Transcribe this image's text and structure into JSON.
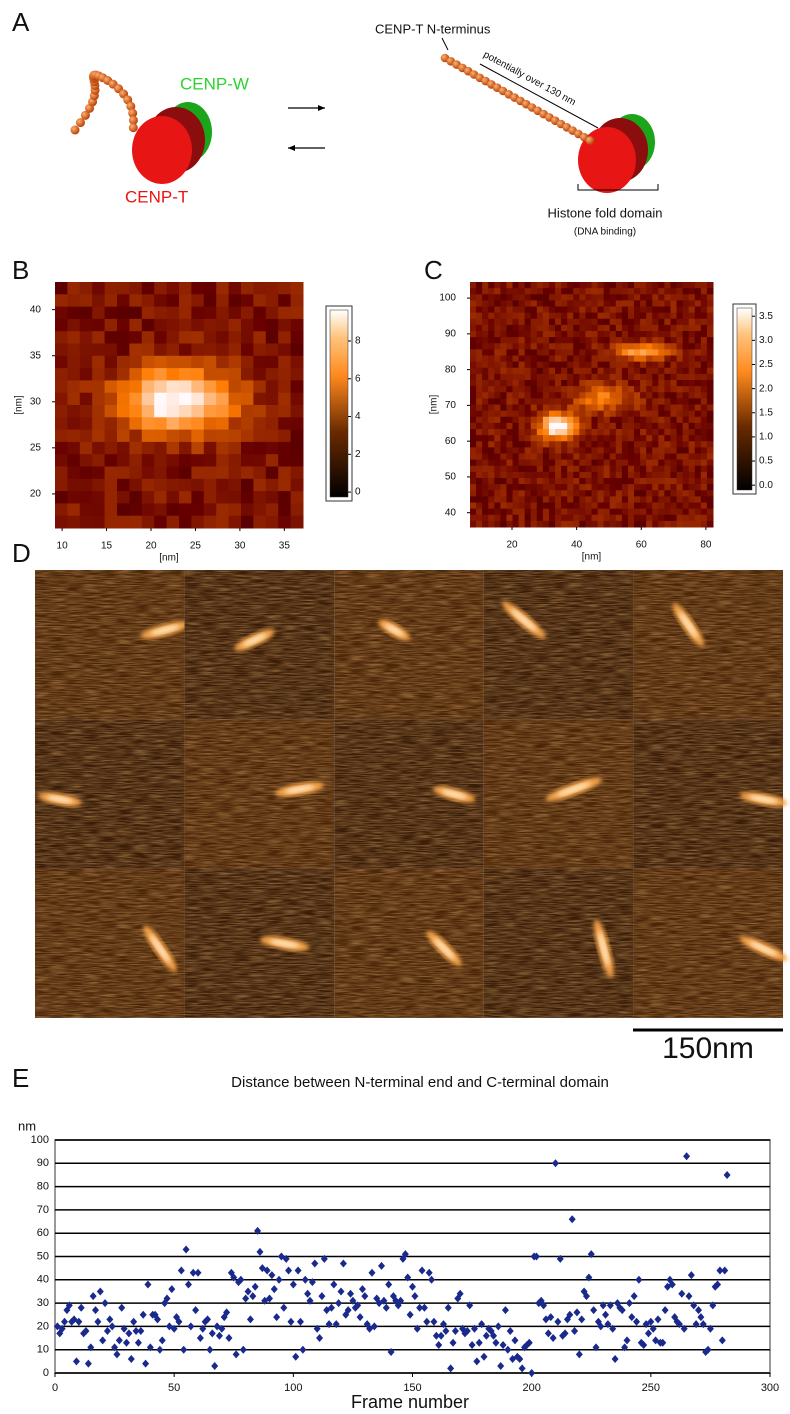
{
  "figure": {
    "panel_labels": [
      "A",
      "B",
      "C",
      "D",
      "E"
    ],
    "diagram": {
      "cenp_w": "CENP-W",
      "cenp_t": "CENP-T",
      "n_terminus": "CENP-T N-terminus",
      "length_note": "potentially over 130 nm",
      "domain": "Histone fold domain",
      "domain_note": "(DNA binding)"
    },
    "scale_bar": "150nm"
  },
  "chart_data": [
    {
      "type": "heatmap",
      "xlabel": "[nm]",
      "ylabel": "[nm]",
      "xlim": [
        9.2,
        37.1
      ],
      "ylim": [
        16.3,
        43.0
      ],
      "xticks": [
        10,
        15,
        20,
        25,
        30,
        35
      ],
      "yticks": [
        20,
        25,
        30,
        35,
        40
      ],
      "colorbar_lim": [
        -0.26,
        9.64
      ],
      "colorbar_ticks": [
        0,
        2,
        4,
        6,
        8
      ]
    },
    {
      "type": "heatmap",
      "xlabel": "[nm]",
      "ylabel": "[nm]",
      "xlim": [
        7,
        82.2
      ],
      "ylim": [
        36,
        104.5
      ],
      "xticks": [
        20,
        40,
        60,
        80
      ],
      "yticks": [
        40,
        50,
        60,
        70,
        80,
        90,
        100
      ],
      "colorbar_lim": [
        -0.1,
        3.67
      ],
      "colorbar_ticks": [
        {
          "value": 0,
          "label": "0.0"
        },
        0.5,
        {
          "value": 1,
          "label": "1.0"
        },
        1.5,
        {
          "value": 2,
          "label": "2.0"
        },
        2.5,
        {
          "value": 3,
          "label": "3.0"
        },
        3.5
      ]
    },
    {
      "type": "scatter",
      "title": "Distance between N-terminal end and C-terminal domain",
      "xlabel": "Frame number",
      "ylabel": "nm",
      "xlim": [
        0,
        300
      ],
      "ylim": [
        0,
        100
      ],
      "xticks": [
        0,
        50,
        100,
        150,
        200,
        250,
        300
      ],
      "yticks": [
        0,
        10,
        20,
        30,
        40,
        50,
        60,
        70,
        80,
        90,
        100
      ],
      "grid": true,
      "color": "#1a2a8c",
      "x": [
        1,
        2,
        3,
        4,
        5,
        6,
        7,
        8,
        9,
        10,
        11,
        12,
        13,
        14,
        15,
        16,
        17,
        18,
        19,
        20,
        21,
        22,
        23,
        24,
        25,
        26,
        27,
        28,
        29,
        30,
        31,
        32,
        33,
        34,
        35,
        36,
        37,
        38,
        39,
        40,
        41,
        42,
        43,
        44,
        45,
        46,
        47,
        48,
        49,
        50,
        51,
        52,
        53,
        54,
        55,
        56,
        57,
        58,
        59,
        60,
        61,
        62,
        63,
        64,
        65,
        66,
        67,
        68,
        69,
        70,
        71,
        72,
        73,
        74,
        75,
        76,
        77,
        78,
        79,
        80,
        81,
        82,
        83,
        84,
        85,
        86,
        87,
        88,
        89,
        90,
        91,
        92,
        93,
        94,
        95,
        96,
        97,
        98,
        99,
        100,
        101,
        102,
        103,
        104,
        105,
        106,
        107,
        108,
        109,
        110,
        111,
        112,
        113,
        114,
        115,
        116,
        117,
        118,
        119,
        120,
        121,
        122,
        123,
        124,
        125,
        126,
        127,
        128,
        129,
        130,
        131,
        132,
        133,
        134,
        135,
        136,
        137,
        138,
        139,
        140,
        141,
        142,
        143,
        144,
        145,
        146,
        147,
        148,
        149,
        150,
        151,
        152,
        153,
        154,
        155,
        156,
        157,
        158,
        159,
        160,
        161,
        162,
        163,
        164,
        165,
        166,
        167,
        168,
        169,
        170,
        171,
        172,
        173,
        174,
        175,
        176,
        177,
        178,
        179,
        180,
        181,
        182,
        183,
        184,
        185,
        186,
        187,
        188,
        189,
        190,
        191,
        192,
        193,
        194,
        195,
        196,
        197,
        198,
        199,
        200,
        201,
        202,
        203,
        204,
        205,
        206,
        207,
        208,
        209,
        210,
        211,
        212,
        213,
        214,
        215,
        216,
        217,
        218,
        219,
        220,
        221,
        222,
        223,
        224,
        225,
        226,
        227,
        228,
        229,
        230,
        231,
        232,
        233,
        234,
        235,
        236,
        237,
        238,
        239,
        240,
        241,
        242,
        243,
        244,
        245,
        246,
        247,
        248,
        249,
        250,
        251,
        252,
        253,
        254,
        255,
        256,
        257,
        258,
        259,
        260,
        261,
        262,
        263,
        264,
        265,
        266,
        267,
        268,
        269,
        270,
        271,
        272,
        273,
        274,
        275,
        276,
        277,
        278,
        279,
        280,
        281,
        282
      ],
      "values": [
        20,
        17,
        19,
        22,
        27,
        29,
        22,
        23,
        5,
        22,
        28,
        17,
        18,
        4,
        11,
        33,
        27,
        22,
        35,
        14,
        30,
        18,
        23,
        20,
        11,
        8,
        14,
        28,
        19,
        13,
        17,
        6,
        22,
        18,
        13,
        18,
        25,
        4,
        38,
        11,
        25,
        25,
        23,
        10,
        14,
        30,
        32,
        20,
        36,
        19,
        24,
        22,
        44,
        10,
        53,
        38,
        20,
        43,
        27,
        43,
        15,
        19,
        22,
        23,
        10,
        17,
        3,
        20,
        16,
        19,
        24,
        26,
        15,
        43,
        41,
        8,
        39,
        40,
        10,
        32,
        35,
        23,
        33,
        37,
        61,
        52,
        45,
        31,
        44,
        32,
        42,
        36,
        24,
        40,
        50,
        28,
        49,
        44,
        22,
        38,
        7,
        44,
        22,
        10,
        40,
        34,
        31,
        39,
        47,
        19,
        15,
        33,
        49,
        27,
        21,
        28,
        38,
        21,
        30,
        35,
        47,
        25,
        27,
        34,
        31,
        28,
        29,
        24,
        36,
        33,
        21,
        19,
        43,
        20,
        32,
        30,
        46,
        31,
        28,
        38,
        9,
        33,
        31,
        29,
        31,
        49,
        51,
        41,
        25,
        37,
        33,
        19,
        28,
        44,
        28,
        22,
        43,
        40,
        22,
        16,
        12,
        16,
        21,
        18,
        28,
        2,
        13,
        18,
        32,
        34,
        19,
        17,
        18,
        29,
        12,
        19,
        5,
        13,
        21,
        7,
        16,
        19,
        18,
        16,
        13,
        20,
        3,
        12,
        27,
        10,
        18,
        6,
        14,
        7,
        6,
        2,
        11,
        12,
        13,
        0,
        50,
        50,
        30,
        31,
        29,
        23,
        17,
        24,
        15,
        90,
        22,
        49,
        16,
        17,
        23,
        25,
        66,
        18,
        26,
        8,
        23,
        35,
        33,
        41,
        51,
        27,
        11,
        22,
        20,
        29,
        25,
        21,
        29,
        19,
        6,
        30,
        28,
        27,
        11,
        14,
        30,
        24,
        33,
        22,
        40,
        13,
        12,
        21,
        17,
        22,
        19,
        14,
        23,
        13,
        13,
        27,
        37,
        40,
        38,
        24,
        22,
        21,
        34,
        19,
        93,
        33,
        42,
        29,
        21,
        27,
        24,
        21,
        9,
        10,
        19,
        29,
        37,
        38,
        44,
        14,
        44,
        85
      ]
    }
  ]
}
